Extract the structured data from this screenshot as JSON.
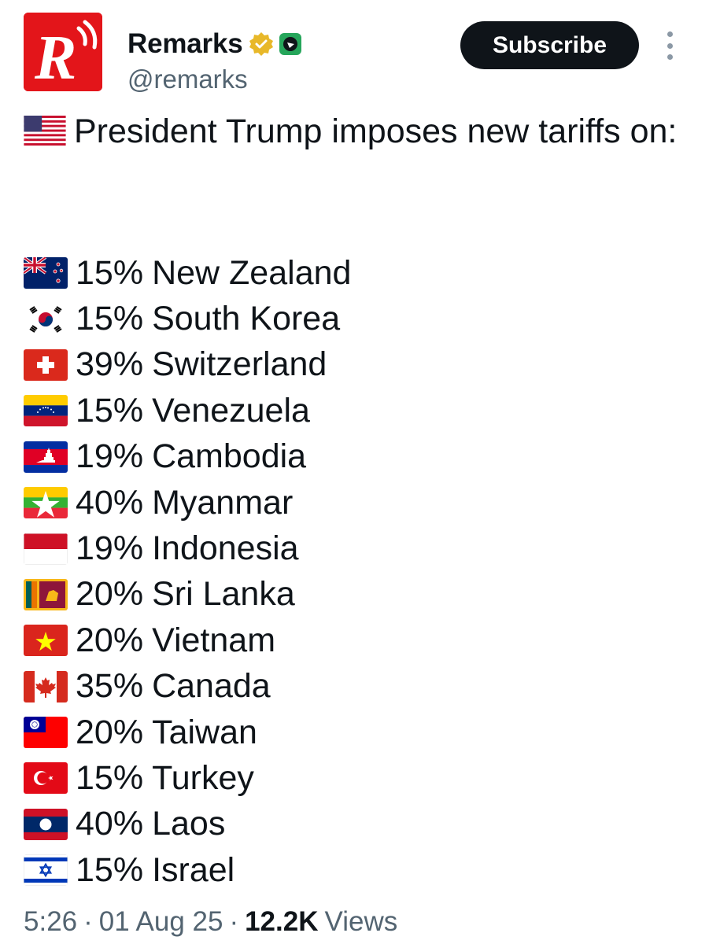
{
  "account": {
    "name": "Remarks",
    "handle": "@remarks",
    "avatar_letter": "R",
    "brand_color": "#e3151a",
    "verified_badge": "gold-checkmark",
    "affiliation_icon": "green-bird-badge"
  },
  "actions": {
    "subscribe_label": "Subscribe",
    "more_icon": "more-vertical-icon"
  },
  "post": {
    "headline_flag": "US",
    "headline": "President Trump imposes new tariffs on:",
    "tariffs": [
      {
        "flag": "NZ",
        "rate": "15%",
        "country": "New Zealand"
      },
      {
        "flag": "KR",
        "rate": "15%",
        "country": "South Korea"
      },
      {
        "flag": "CH",
        "rate": "39%",
        "country": "Switzerland"
      },
      {
        "flag": "VE",
        "rate": "15%",
        "country": "Venezuela"
      },
      {
        "flag": "KH",
        "rate": "19%",
        "country": "Cambodia"
      },
      {
        "flag": "MM",
        "rate": "40%",
        "country": "Myanmar"
      },
      {
        "flag": "ID",
        "rate": "19%",
        "country": "Indonesia"
      },
      {
        "flag": "LK",
        "rate": "20%",
        "country": "Sri Lanka"
      },
      {
        "flag": "VN",
        "rate": "20%",
        "country": "Vietnam"
      },
      {
        "flag": "CA",
        "rate": "35%",
        "country": "Canada"
      },
      {
        "flag": "TW",
        "rate": "20%",
        "country": "Taiwan"
      },
      {
        "flag": "TR",
        "rate": "15%",
        "country": "Turkey"
      },
      {
        "flag": "LA",
        "rate": "40%",
        "country": "Laos"
      },
      {
        "flag": "IL",
        "rate": "15%",
        "country": "Israel"
      }
    ]
  },
  "meta": {
    "time": "5:26",
    "separator": "·",
    "date": "01 Aug 25",
    "views_count": "12.2K",
    "views_label": "Views"
  }
}
